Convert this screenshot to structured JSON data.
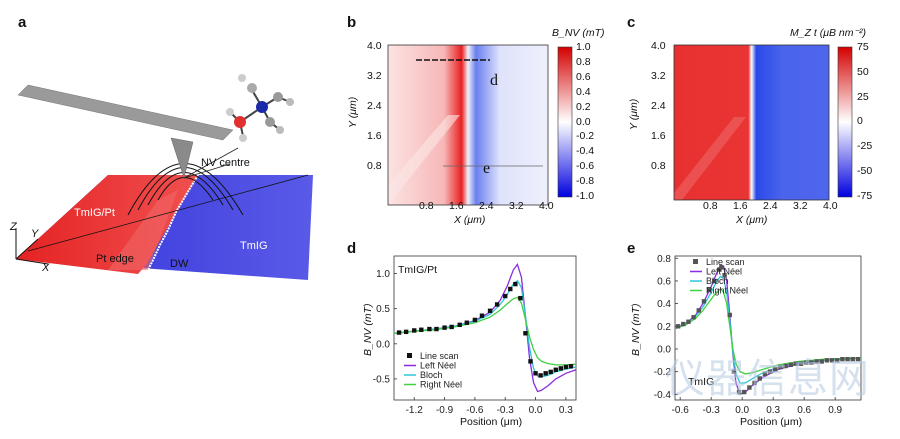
{
  "panels": {
    "a": "a",
    "b": "b",
    "c": "c",
    "d": "d",
    "e": "e"
  },
  "panel_a": {
    "labels": {
      "nv_centre": "NV centre",
      "tmig_pt": "TmIG/Pt",
      "pt_edge": "Pt edge",
      "dw": "DW",
      "tmig": "TmIG",
      "z": "Z",
      "y": "Y",
      "x": "X"
    },
    "colors": {
      "pt_region": "#ee2a2a",
      "tmig_region": "#3a3de0",
      "cantilever": "#9a9a9a"
    }
  },
  "panel_b": {
    "colorbar_label": "B_NV (mT)",
    "colorbar_ticks": [
      "1.0",
      "0.8",
      "0.6",
      "0.4",
      "0.2",
      "0.0",
      "-0.2",
      "-0.4",
      "-0.6",
      "-0.8",
      "-1.0"
    ],
    "y_ticks": [
      "4.0",
      "3.2",
      "2.4",
      "1.6",
      "0.8"
    ],
    "x_ticks": [
      "0.8",
      "1.6",
      "2.4",
      "3.2",
      "4.0"
    ],
    "ylabel": "Y (μm)",
    "xlabel": "X (μm)",
    "linecut_labels": {
      "d": "d",
      "e": "e"
    }
  },
  "panel_c": {
    "colorbar_label": "M_Z t (μB nm⁻²)",
    "colorbar_ticks": [
      "75",
      "50",
      "25",
      "0",
      "-25",
      "-50",
      "-75"
    ],
    "y_ticks": [
      "4.0",
      "3.2",
      "2.4",
      "1.6",
      "0.8"
    ],
    "x_ticks": [
      "0.8",
      "1.6",
      "2.4",
      "3.2",
      "4.0"
    ],
    "ylabel": "Y (μm)",
    "xlabel": "X (μm)"
  },
  "chart_data": [
    {
      "id": "d",
      "type": "line",
      "annotation": "TmIG/Pt",
      "xlabel": "Position (μm)",
      "ylabel": "B_NV (mT)",
      "xlim": [
        -1.4,
        0.4
      ],
      "ylim": [
        -0.8,
        1.25
      ],
      "x_ticks": [
        "-1.2",
        "-0.9",
        "-0.6",
        "-0.3",
        "0.0",
        "0.3"
      ],
      "y_ticks": [
        "1.0",
        "0.5",
        "0.0",
        "-0.5"
      ],
      "legend": [
        "Line scan",
        "Left Néel",
        "Bloch",
        "Right Néel"
      ],
      "series": [
        {
          "name": "Line scan",
          "style": "square",
          "color": "#111111",
          "x": [
            -1.35,
            -1.28,
            -1.2,
            -1.13,
            -1.05,
            -0.98,
            -0.9,
            -0.83,
            -0.75,
            -0.68,
            -0.6,
            -0.53,
            -0.45,
            -0.38,
            -0.3,
            -0.25,
            -0.2,
            -0.15,
            -0.1,
            -0.05,
            0.0,
            0.05,
            0.1,
            0.15,
            0.2,
            0.25,
            0.3,
            0.35
          ],
          "y": [
            0.16,
            0.17,
            0.19,
            0.2,
            0.21,
            0.21,
            0.23,
            0.24,
            0.27,
            0.3,
            0.34,
            0.4,
            0.47,
            0.56,
            0.68,
            0.78,
            0.85,
            0.65,
            0.15,
            -0.25,
            -0.42,
            -0.45,
            -0.42,
            -0.4,
            -0.37,
            -0.35,
            -0.33,
            -0.32
          ]
        },
        {
          "name": "Left Néel",
          "style": "line",
          "color": "#8a2be2",
          "x": [
            -1.4,
            -1.2,
            -1.0,
            -0.8,
            -0.6,
            -0.45,
            -0.35,
            -0.28,
            -0.22,
            -0.18,
            -0.14,
            -0.1,
            -0.06,
            -0.02,
            0.02,
            0.06,
            0.12,
            0.2,
            0.3,
            0.4
          ],
          "y": [
            0.15,
            0.18,
            0.21,
            0.25,
            0.33,
            0.45,
            0.62,
            0.82,
            1.05,
            1.13,
            0.95,
            0.4,
            -0.2,
            -0.55,
            -0.68,
            -0.66,
            -0.6,
            -0.5,
            -0.42,
            -0.37
          ]
        },
        {
          "name": "Bloch",
          "style": "line",
          "color": "#2ec4d6",
          "x": [
            -1.4,
            -1.2,
            -1.0,
            -0.8,
            -0.6,
            -0.45,
            -0.35,
            -0.28,
            -0.22,
            -0.18,
            -0.14,
            -0.1,
            -0.06,
            -0.02,
            0.02,
            0.06,
            0.12,
            0.2,
            0.3,
            0.4
          ],
          "y": [
            0.15,
            0.18,
            0.21,
            0.25,
            0.32,
            0.42,
            0.56,
            0.7,
            0.85,
            0.9,
            0.8,
            0.4,
            -0.05,
            -0.35,
            -0.46,
            -0.47,
            -0.45,
            -0.4,
            -0.36,
            -0.33
          ]
        },
        {
          "name": "Right Néel",
          "style": "line",
          "color": "#40d040",
          "x": [
            -1.4,
            -1.2,
            -1.0,
            -0.8,
            -0.6,
            -0.45,
            -0.35,
            -0.28,
            -0.22,
            -0.18,
            -0.14,
            -0.1,
            -0.06,
            -0.02,
            0.02,
            0.06,
            0.12,
            0.2,
            0.3,
            0.4
          ],
          "y": [
            0.15,
            0.18,
            0.2,
            0.24,
            0.3,
            0.38,
            0.48,
            0.57,
            0.64,
            0.66,
            0.58,
            0.35,
            0.1,
            -0.08,
            -0.2,
            -0.25,
            -0.28,
            -0.3,
            -0.3,
            -0.29
          ]
        }
      ]
    },
    {
      "id": "e",
      "type": "line",
      "annotation": "TmIG",
      "xlabel": "Position (μm)",
      "ylabel": "B_NV (mT)",
      "xlim": [
        -0.65,
        1.15
      ],
      "ylim": [
        -0.45,
        0.82
      ],
      "x_ticks": [
        "-0.6",
        "-0.3",
        "0.0",
        "0.3",
        "0.6",
        "0.9"
      ],
      "y_ticks": [
        "0.8",
        "0.6",
        "0.4",
        "0.2",
        "0.0",
        "-0.2",
        "-0.4"
      ],
      "legend": [
        "Line scan",
        "Left Néel",
        "Bloch",
        "Right Néel"
      ],
      "series": [
        {
          "name": "Line scan",
          "style": "square",
          "color": "#555555",
          "x": [
            -0.62,
            -0.57,
            -0.52,
            -0.47,
            -0.42,
            -0.37,
            -0.32,
            -0.27,
            -0.22,
            -0.2,
            -0.17,
            -0.12,
            -0.08,
            -0.03,
            0.02,
            0.07,
            0.12,
            0.17,
            0.22,
            0.27,
            0.32,
            0.37,
            0.42,
            0.47,
            0.52,
            0.57,
            0.62,
            0.67,
            0.72,
            0.77,
            0.82,
            0.87,
            0.92,
            0.97,
            1.02,
            1.07,
            1.12
          ],
          "y": [
            0.2,
            0.22,
            0.24,
            0.28,
            0.34,
            0.42,
            0.52,
            0.6,
            0.7,
            0.72,
            0.65,
            0.3,
            -0.2,
            -0.38,
            -0.38,
            -0.34,
            -0.3,
            -0.26,
            -0.22,
            -0.2,
            -0.18,
            -0.16,
            -0.15,
            -0.14,
            -0.13,
            -0.13,
            -0.12,
            -0.12,
            -0.11,
            -0.11,
            -0.1,
            -0.1,
            -0.1,
            -0.09,
            -0.09,
            -0.09,
            -0.09
          ]
        },
        {
          "name": "Left Néel",
          "style": "line",
          "color": "#8a2be2",
          "x": [
            -0.65,
            -0.55,
            -0.45,
            -0.38,
            -0.3,
            -0.25,
            -0.21,
            -0.18,
            -0.15,
            -0.12,
            -0.09,
            -0.06,
            -0.02,
            0.03,
            0.1,
            0.2,
            0.35,
            0.55,
            0.8,
            1.15
          ],
          "y": [
            0.18,
            0.22,
            0.3,
            0.4,
            0.55,
            0.66,
            0.74,
            0.73,
            0.6,
            0.3,
            -0.05,
            -0.3,
            -0.4,
            -0.38,
            -0.32,
            -0.25,
            -0.18,
            -0.13,
            -0.1,
            -0.08
          ]
        },
        {
          "name": "Bloch",
          "style": "line",
          "color": "#2ec4d6",
          "x": [
            -0.65,
            -0.55,
            -0.45,
            -0.38,
            -0.3,
            -0.25,
            -0.21,
            -0.18,
            -0.15,
            -0.12,
            -0.09,
            -0.06,
            -0.02,
            0.03,
            0.1,
            0.2,
            0.35,
            0.55,
            0.8,
            1.15
          ],
          "y": [
            0.18,
            0.22,
            0.29,
            0.37,
            0.5,
            0.59,
            0.64,
            0.62,
            0.5,
            0.25,
            -0.03,
            -0.22,
            -0.3,
            -0.3,
            -0.26,
            -0.21,
            -0.16,
            -0.12,
            -0.1,
            -0.08
          ]
        },
        {
          "name": "Right Néel",
          "style": "line",
          "color": "#40d040",
          "x": [
            -0.65,
            -0.55,
            -0.45,
            -0.38,
            -0.3,
            -0.25,
            -0.21,
            -0.18,
            -0.15,
            -0.12,
            -0.09,
            -0.06,
            -0.02,
            0.03,
            0.1,
            0.2,
            0.35,
            0.55,
            0.8,
            1.15
          ],
          "y": [
            0.18,
            0.21,
            0.27,
            0.34,
            0.44,
            0.5,
            0.53,
            0.5,
            0.4,
            0.2,
            0.0,
            -0.13,
            -0.2,
            -0.22,
            -0.21,
            -0.18,
            -0.14,
            -0.11,
            -0.09,
            -0.08
          ]
        }
      ]
    }
  ],
  "watermark": "仪器信息网"
}
